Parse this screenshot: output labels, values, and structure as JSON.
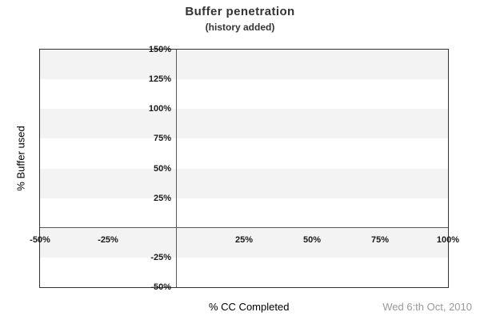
{
  "chart_data": {
    "type": "scatter",
    "title": "Buffer penetration",
    "subtitle": "(history added)",
    "xlabel": "% CC Completed",
    "ylabel": "% Buffer used",
    "date_label": "Wed 6:th Oct, 2010",
    "xlim": [
      -50,
      100
    ],
    "ylim": [
      -50,
      150
    ],
    "x_ticks": [
      -50,
      -25,
      25,
      50,
      75,
      100
    ],
    "y_ticks": [
      150,
      125,
      100,
      75,
      50,
      25,
      -25,
      -50
    ],
    "tick_suffix": "%",
    "grid_bands_y": [
      [
        -25,
        0
      ],
      [
        25,
        50
      ],
      [
        75,
        100
      ],
      [
        125,
        150
      ]
    ],
    "series": [],
    "legend_visible": false,
    "grid": "horizontal-bands",
    "colors": {
      "band": "#f3f3f3",
      "plot_border": "#333333",
      "axis_line": "#5a5a5a",
      "tick_text": "#1a1a1a",
      "title_text": "#333333",
      "axis_title_text": "#000000",
      "date_text": "#999999",
      "background": "#ffffff"
    }
  }
}
